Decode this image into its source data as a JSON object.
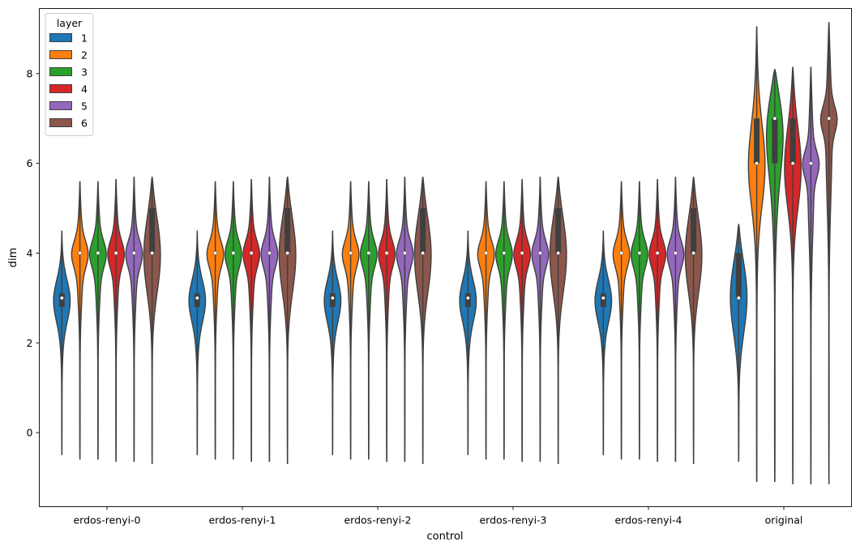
{
  "chart_data": {
    "type": "violin",
    "xlabel": "control",
    "ylabel": "dim",
    "categories": [
      "erdos-renyi-0",
      "erdos-renyi-1",
      "erdos-renyi-2",
      "erdos-renyi-3",
      "erdos-renyi-4",
      "original"
    ],
    "ylim": [
      -1.65,
      9.45
    ],
    "yticks": [
      0,
      2,
      4,
      6,
      8
    ],
    "grid": false,
    "legend": {
      "title": "layer",
      "placement": "top-left",
      "entries": [
        "1",
        "2",
        "3",
        "4",
        "5",
        "6"
      ]
    },
    "colors": {
      "1": "#1f77b4",
      "2": "#ff7f0e",
      "3": "#2ca02c",
      "4": "#d62728",
      "5": "#9467bd",
      "6": "#8c564b"
    },
    "series": [
      {
        "layer": "1",
        "name": "1",
        "values": [
          {
            "min": -0.5,
            "q1": 2.8,
            "median": 3,
            "q3": 3.1,
            "max": 4.5
          },
          {
            "min": -0.5,
            "q1": 2.8,
            "median": 3,
            "q3": 3.1,
            "max": 4.5
          },
          {
            "min": -0.5,
            "q1": 2.8,
            "median": 3,
            "q3": 3.1,
            "max": 4.5
          },
          {
            "min": -0.5,
            "q1": 2.8,
            "median": 3,
            "q3": 3.1,
            "max": 4.5
          },
          {
            "min": -0.5,
            "q1": 2.8,
            "median": 3,
            "q3": 3.1,
            "max": 4.5
          },
          {
            "min": -0.65,
            "q1": 3,
            "median": 3,
            "q3": 4,
            "max": 4.65
          }
        ]
      },
      {
        "layer": "2",
        "name": "2",
        "values": [
          {
            "min": -0.6,
            "q1": 4,
            "median": 4,
            "q3": 4,
            "max": 5.6
          },
          {
            "min": -0.6,
            "q1": 4,
            "median": 4,
            "q3": 4,
            "max": 5.6
          },
          {
            "min": -0.6,
            "q1": 4,
            "median": 4,
            "q3": 4,
            "max": 5.6
          },
          {
            "min": -0.6,
            "q1": 4,
            "median": 4,
            "q3": 4,
            "max": 5.6
          },
          {
            "min": -0.6,
            "q1": 4,
            "median": 4,
            "q3": 4,
            "max": 5.6
          },
          {
            "min": -1.1,
            "q1": 6,
            "median": 6,
            "q3": 7,
            "max": 9.05
          }
        ]
      },
      {
        "layer": "3",
        "name": "3",
        "values": [
          {
            "min": -0.6,
            "q1": 4,
            "median": 4,
            "q3": 4,
            "max": 5.6
          },
          {
            "min": -0.6,
            "q1": 4,
            "median": 4,
            "q3": 4,
            "max": 5.6
          },
          {
            "min": -0.6,
            "q1": 4,
            "median": 4,
            "q3": 4,
            "max": 5.6
          },
          {
            "min": -0.6,
            "q1": 4,
            "median": 4,
            "q3": 4,
            "max": 5.6
          },
          {
            "min": -0.6,
            "q1": 4,
            "median": 4,
            "q3": 4,
            "max": 5.6
          },
          {
            "min": -1.1,
            "q1": 6,
            "median": 7,
            "q3": 7,
            "max": 8.1
          }
        ]
      },
      {
        "layer": "4",
        "name": "4",
        "values": [
          {
            "min": -0.65,
            "q1": 4,
            "median": 4,
            "q3": 4,
            "max": 5.65
          },
          {
            "min": -0.65,
            "q1": 4,
            "median": 4,
            "q3": 4,
            "max": 5.65
          },
          {
            "min": -0.65,
            "q1": 4,
            "median": 4,
            "q3": 4,
            "max": 5.65
          },
          {
            "min": -0.65,
            "q1": 4,
            "median": 4,
            "q3": 4,
            "max": 5.65
          },
          {
            "min": -0.65,
            "q1": 4,
            "median": 4,
            "q3": 4,
            "max": 5.65
          },
          {
            "min": -1.15,
            "q1": 6,
            "median": 6,
            "q3": 7,
            "max": 8.15
          }
        ]
      },
      {
        "layer": "5",
        "name": "5",
        "values": [
          {
            "min": -0.65,
            "q1": 4,
            "median": 4,
            "q3": 4,
            "max": 5.7
          },
          {
            "min": -0.65,
            "q1": 4,
            "median": 4,
            "q3": 4,
            "max": 5.7
          },
          {
            "min": -0.65,
            "q1": 4,
            "median": 4,
            "q3": 4,
            "max": 5.7
          },
          {
            "min": -0.65,
            "q1": 4,
            "median": 4,
            "q3": 4,
            "max": 5.7
          },
          {
            "min": -0.65,
            "q1": 4,
            "median": 4,
            "q3": 4,
            "max": 5.7
          },
          {
            "min": -1.15,
            "q1": 6,
            "median": 6,
            "q3": 6,
            "max": 8.15
          }
        ]
      },
      {
        "layer": "6",
        "name": "6",
        "values": [
          {
            "min": -0.7,
            "q1": 4,
            "median": 4,
            "q3": 5,
            "max": 5.7
          },
          {
            "min": -0.7,
            "q1": 4,
            "median": 4,
            "q3": 5,
            "max": 5.7
          },
          {
            "min": -0.7,
            "q1": 4,
            "median": 4,
            "q3": 5,
            "max": 5.7
          },
          {
            "min": -0.7,
            "q1": 4,
            "median": 4,
            "q3": 5,
            "max": 5.7
          },
          {
            "min": -0.7,
            "q1": 4,
            "median": 4,
            "q3": 5,
            "max": 5.7
          },
          {
            "min": -1.15,
            "q1": 7,
            "median": 7,
            "q3": 7,
            "max": 9.15
          }
        ]
      }
    ]
  }
}
